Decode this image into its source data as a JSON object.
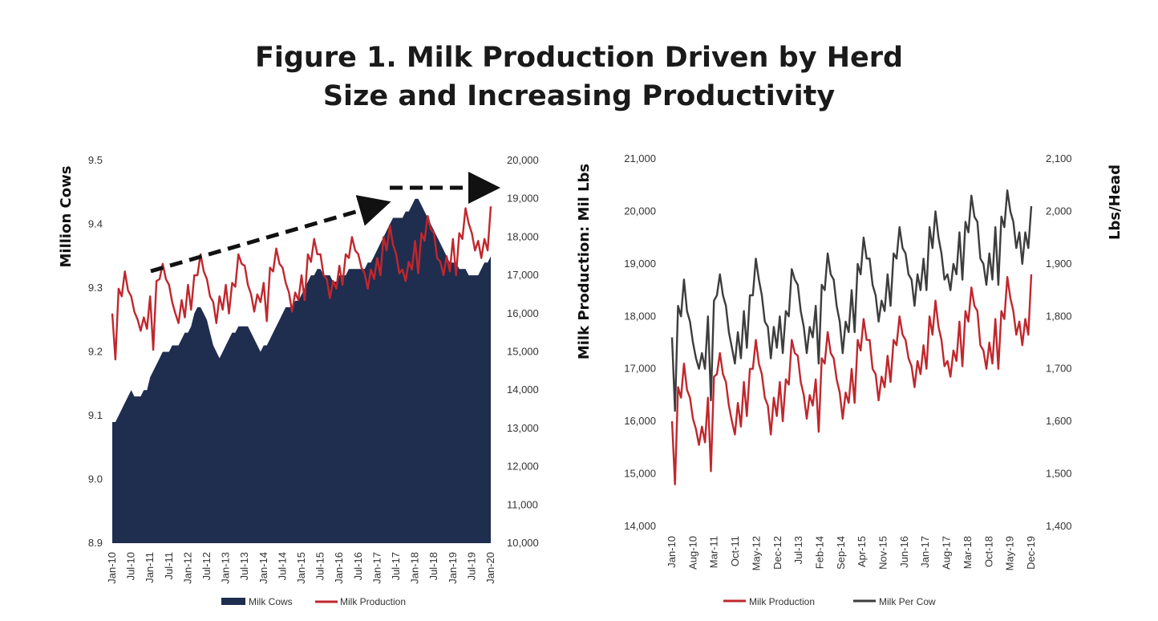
{
  "title": {
    "line1": "Figure 1. Milk Production Driven by Herd",
    "line2": "Size and Increasing Productivity"
  },
  "colors": {
    "navy": "#1f2d4f",
    "red": "#c0272d",
    "gray": "#3d3d3d"
  },
  "chart_data": [
    {
      "type": "area",
      "ylabel": "Million Cows",
      "y2label": "",
      "ylim": [
        8.9,
        9.5
      ],
      "y2lim": [
        10000,
        20000
      ],
      "yticks": [
        "8.9",
        "9.0",
        "9.1",
        "9.2",
        "9.3",
        "9.4",
        "9.5"
      ],
      "y2ticks": [
        "10,000",
        "11,000",
        "12,000",
        "13,000",
        "14,000",
        "15,000",
        "16,000",
        "17,000",
        "18,000",
        "19,000",
        "20,000"
      ],
      "xticks": [
        "Jan-10",
        "Jul-10",
        "Jan-11",
        "Jul-11",
        "Jan-12",
        "Jul-12",
        "Jan-13",
        "Jul-13",
        "Jan-14",
        "Jul-14",
        "Jan-15",
        "Jul-15",
        "Jan-16",
        "Jul-16",
        "Jan-17",
        "Jul-17",
        "Jan-18",
        "Jul-18",
        "Jan-19",
        "Jul-19",
        "Jan-20"
      ],
      "legend_position": "bottom",
      "series": [
        {
          "name": "Milk Cows",
          "axis": "left",
          "style": "area",
          "values": [
            9.09,
            9.09,
            9.1,
            9.11,
            9.12,
            9.13,
            9.14,
            9.13,
            9.13,
            9.13,
            9.14,
            9.14,
            9.16,
            9.17,
            9.18,
            9.19,
            9.2,
            9.2,
            9.2,
            9.21,
            9.21,
            9.21,
            9.22,
            9.23,
            9.23,
            9.24,
            9.26,
            9.27,
            9.27,
            9.26,
            9.25,
            9.23,
            9.21,
            9.2,
            9.19,
            9.2,
            9.21,
            9.22,
            9.23,
            9.23,
            9.24,
            9.24,
            9.24,
            9.24,
            9.23,
            9.22,
            9.21,
            9.2,
            9.21,
            9.21,
            9.22,
            9.23,
            9.24,
            9.25,
            9.26,
            9.27,
            9.27,
            9.27,
            9.28,
            9.28,
            9.29,
            9.3,
            9.31,
            9.32,
            9.32,
            9.33,
            9.33,
            9.32,
            9.32,
            9.32,
            9.31,
            9.31,
            9.32,
            9.32,
            9.32,
            9.33,
            9.33,
            9.33,
            9.33,
            9.33,
            9.33,
            9.34,
            9.34,
            9.35,
            9.36,
            9.37,
            9.38,
            9.39,
            9.4,
            9.41,
            9.41,
            9.41,
            9.41,
            9.42,
            9.42,
            9.43,
            9.44,
            9.44,
            9.43,
            9.42,
            9.41,
            9.4,
            9.39,
            9.38,
            9.37,
            9.36,
            9.35,
            9.34,
            9.34,
            9.34,
            9.33,
            9.33,
            9.33,
            9.32,
            9.32,
            9.32,
            9.32,
            9.33,
            9.34,
            9.34,
            9.35
          ]
        },
        {
          "name": "Milk Production",
          "axis": "right",
          "style": "line",
          "values": [
            16000,
            14800,
            16650,
            16450,
            17100,
            16600,
            16450,
            16050,
            15850,
            15550,
            15900,
            15600,
            16450,
            15050,
            16850,
            16900,
            17300,
            16900,
            16750,
            16300,
            16000,
            15750,
            16350,
            15900,
            16750,
            16100,
            17000,
            17000,
            17550,
            17100,
            16900,
            16450,
            16300,
            15750,
            16450,
            16100,
            16750,
            16000,
            16800,
            16700,
            17550,
            17300,
            17250,
            16750,
            16500,
            16050,
            16500,
            16300,
            16800,
            15800,
            17200,
            17100,
            17700,
            17300,
            17200,
            16800,
            16550,
            16050,
            16550,
            16350,
            17000,
            16350,
            17550,
            17350,
            17950,
            17550,
            17550,
            17000,
            16900,
            16400,
            16850,
            16650,
            17250,
            16750,
            17550,
            17450,
            18000,
            17650,
            17550,
            17200,
            17050,
            16650,
            17150,
            16900,
            17450,
            17000,
            18000,
            17650,
            18300,
            17800,
            17550,
            17050,
            17150,
            16850,
            17350,
            17150,
            17900,
            17050,
            18100,
            17900,
            18550,
            18200,
            18100,
            17450,
            17350,
            17000,
            17500,
            17100,
            17950,
            17000,
            18100,
            17950,
            18750,
            18350,
            18100,
            17650,
            17900,
            17450,
            17950,
            17650,
            18800
          ]
        }
      ],
      "annotations": [
        "rising-trend-arrow",
        "flat-trend-arrow"
      ]
    },
    {
      "type": "line",
      "ylabel": "Milk Production: Mil Lbs",
      "y2label": "Lbs/Head",
      "ylim": [
        14000,
        21000
      ],
      "y2lim": [
        1400,
        2100
      ],
      "yticks": [
        "14,000",
        "15,000",
        "16,000",
        "17,000",
        "18,000",
        "19,000",
        "20,000",
        "21,000"
      ],
      "y2ticks": [
        "1,400",
        "1,500",
        "1,600",
        "1,700",
        "1,800",
        "1,900",
        "2,000",
        "2,100"
      ],
      "xticks": [
        "Jan-10",
        "Aug-10",
        "Mar-11",
        "Oct-11",
        "May-12",
        "Dec-12",
        "Jul-13",
        "Feb-14",
        "Sep-14",
        "Apr-15",
        "Nov-15",
        "Jun-16",
        "Jan-17",
        "Aug-17",
        "Mar-18",
        "Oct-18",
        "May-19",
        "Dec-19"
      ],
      "legend_position": "bottom",
      "series": [
        {
          "name": "Milk Production",
          "axis": "left",
          "values": [
            16000,
            14800,
            16650,
            16450,
            17100,
            16600,
            16450,
            16050,
            15850,
            15550,
            15900,
            15600,
            16450,
            15050,
            16850,
            16900,
            17300,
            16900,
            16750,
            16300,
            16000,
            15750,
            16350,
            15900,
            16750,
            16100,
            17000,
            17000,
            17550,
            17100,
            16900,
            16450,
            16300,
            15750,
            16450,
            16100,
            16750,
            16000,
            16800,
            16700,
            17550,
            17300,
            17250,
            16750,
            16500,
            16050,
            16500,
            16300,
            16800,
            15800,
            17200,
            17100,
            17700,
            17300,
            17200,
            16800,
            16550,
            16050,
            16550,
            16350,
            17000,
            16350,
            17550,
            17350,
            17950,
            17550,
            17550,
            17000,
            16900,
            16400,
            16850,
            16650,
            17250,
            16750,
            17550,
            17450,
            18000,
            17650,
            17550,
            17200,
            17050,
            16650,
            17150,
            16900,
            17450,
            17000,
            18000,
            17650,
            18300,
            17800,
            17550,
            17050,
            17150,
            16850,
            17350,
            17150,
            17900,
            17050,
            18100,
            17900,
            18550,
            18200,
            18100,
            17450,
            17350,
            17000,
            17500,
            17100,
            17950,
            17000,
            18100,
            17950,
            18750,
            18350,
            18100,
            17650,
            17900,
            17450,
            17950,
            17650,
            18800
          ]
        },
        {
          "name": "Milk Per Cow",
          "axis": "right",
          "values": [
            1760,
            1620,
            1820,
            1800,
            1870,
            1810,
            1790,
            1750,
            1720,
            1700,
            1730,
            1700,
            1800,
            1640,
            1830,
            1840,
            1880,
            1840,
            1820,
            1770,
            1740,
            1710,
            1770,
            1720,
            1810,
            1740,
            1840,
            1840,
            1910,
            1870,
            1840,
            1790,
            1780,
            1720,
            1780,
            1740,
            1800,
            1730,
            1810,
            1800,
            1890,
            1870,
            1860,
            1810,
            1780,
            1730,
            1780,
            1760,
            1820,
            1710,
            1860,
            1850,
            1920,
            1880,
            1870,
            1820,
            1790,
            1730,
            1790,
            1770,
            1850,
            1770,
            1900,
            1880,
            1950,
            1910,
            1910,
            1860,
            1840,
            1790,
            1830,
            1810,
            1880,
            1820,
            1920,
            1910,
            1970,
            1930,
            1920,
            1880,
            1870,
            1820,
            1880,
            1850,
            1910,
            1850,
            1970,
            1930,
            2000,
            1950,
            1920,
            1870,
            1880,
            1850,
            1900,
            1880,
            1960,
            1870,
            1980,
            1960,
            2030,
            1990,
            1980,
            1910,
            1900,
            1860,
            1920,
            1870,
            1970,
            1860,
            1990,
            1970,
            2040,
            2000,
            1980,
            1930,
            1960,
            1900,
            1960,
            1930,
            2010
          ]
        }
      ]
    }
  ]
}
